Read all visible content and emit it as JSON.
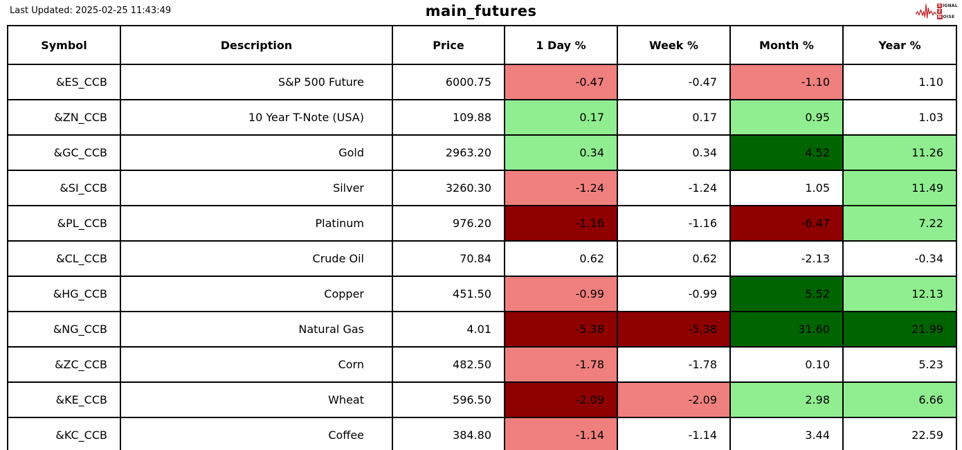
{
  "header": {
    "last_updated": "Last Updated: 2025-02-25 11:43:49",
    "title": "main_futures"
  },
  "logo": {
    "word1_boxed": "S",
    "word1_rest": "IGNAL",
    "word2_boxed": "2",
    "word3_boxed": "N",
    "word3_rest": "OISE",
    "accent_color": "#c0272d"
  },
  "colors": {
    "light_red": "#EF807E",
    "light_green": "#90EE90",
    "dark_red": "#8F0000",
    "dark_green": "#006400",
    "border": "#000000",
    "background": "#FFFFFF"
  },
  "chart_data": {
    "type": "table",
    "title": "main_futures",
    "columns": [
      "Symbol",
      "Description",
      "Price",
      "1 Day %",
      "Week %",
      "Month %",
      "Year %"
    ],
    "cell_color_legend": {
      "lr": "light red (mild loss)",
      "lg": "light green (mild gain)",
      "dr": "dark red (strong loss)",
      "dg": "dark green (strong gain)",
      "none": "white (neutral)"
    },
    "rows": [
      {
        "symbol": "&ES_CCB",
        "description": "S&P 500 Future",
        "price": "6000.75",
        "day": {
          "v": "-0.47",
          "c": "lr"
        },
        "week": {
          "v": "-0.47",
          "c": "none"
        },
        "month": {
          "v": "-1.10",
          "c": "lr"
        },
        "year": {
          "v": "1.10",
          "c": "none"
        }
      },
      {
        "symbol": "&ZN_CCB",
        "description": "10 Year T-Note (USA)",
        "price": "109.88",
        "day": {
          "v": "0.17",
          "c": "lg"
        },
        "week": {
          "v": "0.17",
          "c": "none"
        },
        "month": {
          "v": "0.95",
          "c": "lg"
        },
        "year": {
          "v": "1.03",
          "c": "none"
        }
      },
      {
        "symbol": "&GC_CCB",
        "description": "Gold",
        "price": "2963.20",
        "day": {
          "v": "0.34",
          "c": "lg"
        },
        "week": {
          "v": "0.34",
          "c": "none"
        },
        "month": {
          "v": "4.52",
          "c": "dg"
        },
        "year": {
          "v": "11.26",
          "c": "lg"
        }
      },
      {
        "symbol": "&SI_CCB",
        "description": "Silver",
        "price": "3260.30",
        "day": {
          "v": "-1.24",
          "c": "lr"
        },
        "week": {
          "v": "-1.24",
          "c": "none"
        },
        "month": {
          "v": "1.05",
          "c": "none"
        },
        "year": {
          "v": "11.49",
          "c": "lg"
        }
      },
      {
        "symbol": "&PL_CCB",
        "description": "Platinum",
        "price": "976.20",
        "day": {
          "v": "-1.16",
          "c": "dr"
        },
        "week": {
          "v": "-1.16",
          "c": "none"
        },
        "month": {
          "v": "-6.47",
          "c": "dr"
        },
        "year": {
          "v": "7.22",
          "c": "lg"
        }
      },
      {
        "symbol": "&CL_CCB",
        "description": "Crude Oil",
        "price": "70.84",
        "day": {
          "v": "0.62",
          "c": "none"
        },
        "week": {
          "v": "0.62",
          "c": "none"
        },
        "month": {
          "v": "-2.13",
          "c": "none"
        },
        "year": {
          "v": "-0.34",
          "c": "none"
        }
      },
      {
        "symbol": "&HG_CCB",
        "description": "Copper",
        "price": "451.50",
        "day": {
          "v": "-0.99",
          "c": "lr"
        },
        "week": {
          "v": "-0.99",
          "c": "none"
        },
        "month": {
          "v": "5.52",
          "c": "dg"
        },
        "year": {
          "v": "12.13",
          "c": "lg"
        }
      },
      {
        "symbol": "&NG_CCB",
        "description": "Natural Gas",
        "price": "4.01",
        "day": {
          "v": "-5.38",
          "c": "dr"
        },
        "week": {
          "v": "-5.38",
          "c": "dr"
        },
        "month": {
          "v": "31.60",
          "c": "dg"
        },
        "year": {
          "v": "21.99",
          "c": "dg"
        }
      },
      {
        "symbol": "&ZC_CCB",
        "description": "Corn",
        "price": "482.50",
        "day": {
          "v": "-1.78",
          "c": "lr"
        },
        "week": {
          "v": "-1.78",
          "c": "none"
        },
        "month": {
          "v": "0.10",
          "c": "none"
        },
        "year": {
          "v": "5.23",
          "c": "none"
        }
      },
      {
        "symbol": "&KE_CCB",
        "description": "Wheat",
        "price": "596.50",
        "day": {
          "v": "-2.09",
          "c": "dr"
        },
        "week": {
          "v": "-2.09",
          "c": "lr"
        },
        "month": {
          "v": "2.98",
          "c": "lg"
        },
        "year": {
          "v": "6.66",
          "c": "lg"
        }
      },
      {
        "symbol": "&KC_CCB",
        "description": "Coffee",
        "price": "384.80",
        "day": {
          "v": "-1.14",
          "c": "lr"
        },
        "week": {
          "v": "-1.14",
          "c": "none"
        },
        "month": {
          "v": "3.44",
          "c": "none"
        },
        "year": {
          "v": "22.59",
          "c": "none"
        }
      }
    ]
  }
}
